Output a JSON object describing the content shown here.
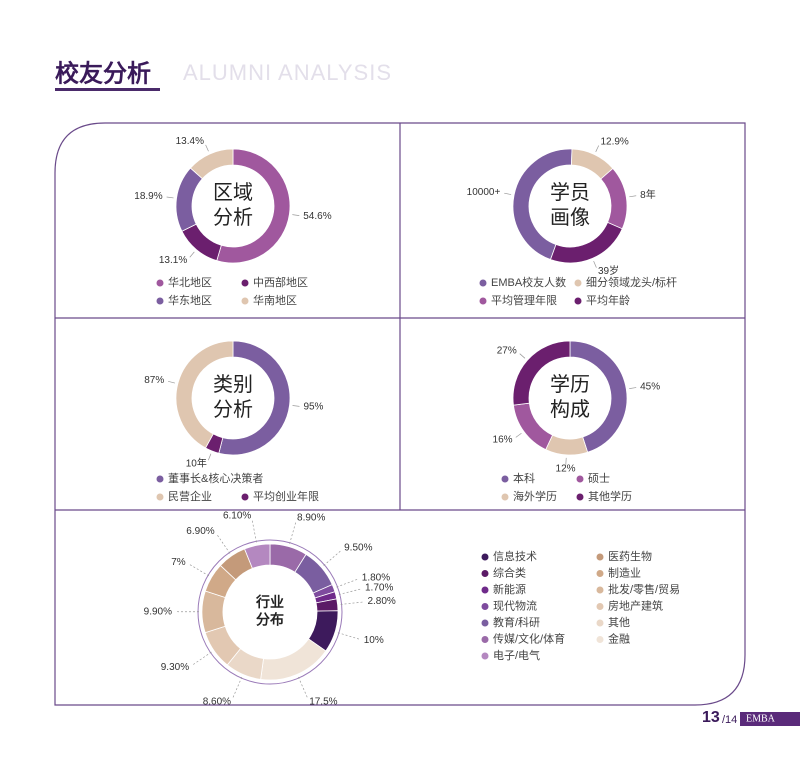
{
  "header": {
    "title": "校友分析",
    "subtitle": "ALUMNI ANALYSIS"
  },
  "footer": {
    "page": "13",
    "total": "/14",
    "brand": "EMBA"
  },
  "chart_data": [
    {
      "type": "pie",
      "title": [
        "区域",
        "分析"
      ],
      "categories": [
        "华北地区",
        "中西部地区",
        "华东地区",
        "华南地区"
      ],
      "values": [
        54.6,
        13.1,
        18.9,
        13.4
      ],
      "value_labels": [
        "54.6%",
        "13.1%",
        "18.9%",
        "13.4%"
      ],
      "colors": [
        "#a0589e",
        "#6b1f6e",
        "#7b5ea0",
        "#dfc6b0"
      ]
    },
    {
      "type": "pie",
      "title": [
        "学员",
        "画像"
      ],
      "categories": [
        "EMBA校友人数",
        "细分领域龙头/标杆",
        "平均管理年限",
        "平均年龄"
      ],
      "values": [
        45,
        13,
        18,
        24
      ],
      "annotations": [
        "10000+",
        "12.9%",
        "8年",
        "39岁"
      ],
      "colors": [
        "#7b5ea0",
        "#dfc6b0",
        "#a0589e",
        "#6b1f6e"
      ]
    },
    {
      "type": "pie",
      "title": [
        "类别",
        "分析"
      ],
      "categories": [
        "董事长&核心决策者",
        "民营企业",
        "平均创业年限"
      ],
      "values": [
        54,
        42,
        4
      ],
      "annotations": [
        "95%",
        "87%",
        "10年"
      ],
      "colors": [
        "#7b5ea0",
        "#dfc6b0",
        "#6b1f6e"
      ]
    },
    {
      "type": "pie",
      "title": [
        "学历",
        "构成"
      ],
      "categories": [
        "本科",
        "硕士",
        "海外学历",
        "其他学历"
      ],
      "values": [
        45,
        16,
        12,
        27
      ],
      "value_labels": [
        "45%",
        "16%",
        "12%",
        "27%"
      ],
      "colors": [
        "#7b5ea0",
        "#a0589e",
        "#dfc6b0",
        "#6b1f6e"
      ]
    },
    {
      "type": "pie",
      "title": [
        "行业",
        "分布"
      ],
      "categories": [
        "信息技术",
        "综合类",
        "新能源",
        "现代物流",
        "教育/科研",
        "传媒/文化/体育",
        "电子/电气",
        "医药生物",
        "制造业",
        "批发/零售/贸易",
        "房地产建筑",
        "其他",
        "金融"
      ],
      "values": [
        10,
        2.8,
        1.7,
        1.8,
        9.5,
        8.9,
        6.1,
        6.9,
        7,
        9.9,
        9.3,
        8.6,
        17.5
      ],
      "value_labels": [
        "10%",
        "2.80%",
        "1.70%",
        "1.80%",
        "9.50%",
        "8.90%",
        "6.10%",
        "6.90%",
        "7%",
        "9.90%",
        "9.30%",
        "8.60%",
        "17.5%"
      ],
      "colors": [
        "#3d1a5c",
        "#5b1a66",
        "#6f2a8a",
        "#7e4b9e",
        "#7a5ea0",
        "#9a6aa8",
        "#b488c0",
        "#c49a7a",
        "#d0a988",
        "#d8b89c",
        "#e2c8b2",
        "#ead8c8",
        "#f0e4d8"
      ]
    }
  ]
}
